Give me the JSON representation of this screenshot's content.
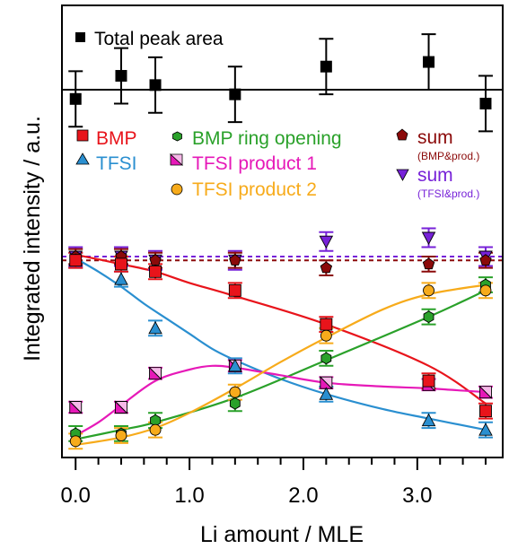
{
  "chart_data": {
    "type": "scatter",
    "xlabel": "Li amount / MLE",
    "ylabel": "Integrated intensity / a.u.",
    "xlim": [
      -0.12,
      3.75
    ],
    "x_ticks": [
      "0.0",
      "1.0",
      "2.0",
      "3.0"
    ],
    "grid": false,
    "x": [
      0.0,
      0.4,
      0.7,
      1.4,
      2.2,
      3.1,
      3.6
    ],
    "top_panel": {
      "ylim": [
        0.84,
        1.16
      ],
      "legend_label": "Total peak area",
      "series": [
        {
          "name": "Total peak area",
          "color": "#000000",
          "marker": "square",
          "values": [
            0.98,
            1.03,
            1.01,
            0.99,
            1.05,
            1.06,
            0.97
          ],
          "errors": [
            0.06,
            0.06,
            0.06,
            0.06,
            0.06,
            0.06,
            0.06
          ]
        }
      ],
      "reference_line": 1.0
    },
    "bottom_panel": {
      "ylim": [
        0.0,
        1.05
      ],
      "series": [
        {
          "name": "BMP",
          "color": "#e8141b",
          "marker": "square",
          "values": [
            0.98,
            0.96,
            0.92,
            0.82,
            0.64,
            0.34,
            0.18
          ],
          "errors": [
            0.04,
            0.04,
            0.04,
            0.04,
            0.04,
            0.04,
            0.04
          ],
          "fit": [
            [
              0.0,
              1.01
            ],
            [
              0.4,
              0.96
            ],
            [
              0.7,
              0.92
            ],
            [
              1.0,
              0.86
            ],
            [
              1.4,
              0.79
            ],
            [
              2.2,
              0.64
            ],
            [
              3.1,
              0.42
            ],
            [
              3.6,
              0.22
            ]
          ]
        },
        {
          "name": "TFSI",
          "color": "#2a8fd0",
          "marker": "triangle-up",
          "values": [
            0.98,
            0.88,
            0.62,
            0.42,
            0.27,
            0.13,
            0.08
          ],
          "errors": [
            0.04,
            0.04,
            0.04,
            0.04,
            0.04,
            0.04,
            0.04
          ],
          "fit": [
            [
              0.0,
              0.99
            ],
            [
              0.2,
              0.92
            ],
            [
              0.4,
              0.84
            ],
            [
              0.6,
              0.75
            ],
            [
              0.8,
              0.67
            ],
            [
              1.0,
              0.59
            ],
            [
              1.2,
              0.51
            ],
            [
              1.4,
              0.45
            ],
            [
              1.8,
              0.35
            ],
            [
              2.2,
              0.27
            ],
            [
              2.7,
              0.19
            ],
            [
              3.1,
              0.14
            ],
            [
              3.6,
              0.08
            ]
          ]
        },
        {
          "name": "BMP ring opening",
          "color": "#2aa12a",
          "marker": "hexagon",
          "values": [
            0.06,
            0.06,
            0.13,
            0.22,
            0.46,
            0.68,
            0.85
          ],
          "errors": [
            0.04,
            0.04,
            0.04,
            0.04,
            0.04,
            0.04,
            0.04
          ],
          "fit": [
            [
              0.0,
              0.03
            ],
            [
              0.4,
              0.08
            ],
            [
              0.7,
              0.12
            ],
            [
              1.4,
              0.25
            ],
            [
              2.2,
              0.45
            ],
            [
              3.1,
              0.68
            ],
            [
              3.6,
              0.82
            ]
          ]
        },
        {
          "name": "TFSI product 1",
          "color": "#e619b8",
          "marker": "triangle-half",
          "values": [
            0.2,
            0.2,
            0.38,
            0.42,
            0.33,
            0.32,
            0.28
          ],
          "errors": [
            0.03,
            0.03,
            0.03,
            0.03,
            0.03,
            0.03,
            0.03
          ],
          "fit": [
            [
              0.0,
              0.05
            ],
            [
              0.2,
              0.12
            ],
            [
              0.4,
              0.21
            ],
            [
              0.7,
              0.34
            ],
            [
              1.0,
              0.4
            ],
            [
              1.2,
              0.42
            ],
            [
              1.4,
              0.41
            ],
            [
              1.8,
              0.37
            ],
            [
              2.2,
              0.33
            ],
            [
              2.7,
              0.31
            ],
            [
              3.1,
              0.3
            ],
            [
              3.6,
              0.28
            ]
          ]
        },
        {
          "name": "TFSI product 2",
          "color": "#f7ab1b",
          "marker": "circle",
          "values": [
            0.02,
            0.05,
            0.08,
            0.28,
            0.58,
            0.82,
            0.82
          ],
          "errors": [
            0.04,
            0.04,
            0.04,
            0.04,
            0.04,
            0.04,
            0.04
          ],
          "fit": [
            [
              0.0,
              0.0
            ],
            [
              0.4,
              0.04
            ],
            [
              0.7,
              0.09
            ],
            [
              1.0,
              0.17
            ],
            [
              1.4,
              0.3
            ],
            [
              1.8,
              0.44
            ],
            [
              2.2,
              0.57
            ],
            [
              2.7,
              0.72
            ],
            [
              3.1,
              0.8
            ],
            [
              3.6,
              0.85
            ]
          ]
        },
        {
          "name": "sum (BMP&prod.)",
          "color": "#8b0a0a",
          "marker": "pentagon",
          "values": [
            1.0,
            1.0,
            0.98,
            0.98,
            0.94,
            0.96,
            0.98
          ],
          "errors": [
            0.04,
            0.04,
            0.04,
            0.04,
            0.04,
            0.04,
            0.04
          ],
          "reference_line": 0.98
        },
        {
          "name": "sum (TFSI&prod.)",
          "color": "#7722d8",
          "marker": "triangle-down",
          "values": [
            1.0,
            1.0,
            0.98,
            0.98,
            1.08,
            1.1,
            1.0
          ],
          "errors": [
            0.05,
            0.05,
            0.05,
            0.05,
            0.05,
            0.05,
            0.05
          ],
          "reference_line": 1.0
        }
      ]
    }
  },
  "legend": {
    "bmp": "BMP",
    "tfsi": "TFSI",
    "ring": "BMP ring opening",
    "p1": "TFSI product 1",
    "p2": "TFSI product 2",
    "sum1": "sum",
    "sum1_sub": "(BMP&prod.)",
    "sum2": "sum",
    "sum2_sub": "(TFSI&prod.)"
  }
}
